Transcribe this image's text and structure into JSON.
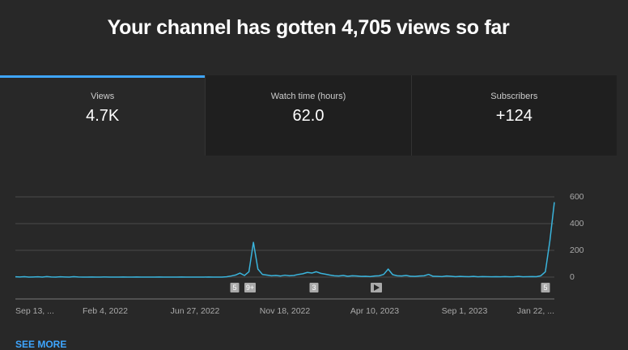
{
  "header": {
    "title": "Your channel has gotten 4,705 views so far"
  },
  "tabs": [
    {
      "label": "Views",
      "value": "4.7K"
    },
    {
      "label": "Watch time (hours)",
      "value": "62.0"
    },
    {
      "label": "Subscribers",
      "value": "+124"
    }
  ],
  "chart_data": {
    "type": "line",
    "categories": [
      "Sep 13, ...",
      null,
      null,
      null,
      null,
      null,
      null,
      null,
      null,
      null,
      null,
      null,
      null,
      null,
      null,
      null,
      null,
      null,
      null,
      null,
      "Feb 4, 2022",
      null,
      null,
      null,
      null,
      null,
      null,
      null,
      null,
      null,
      null,
      null,
      null,
      null,
      null,
      null,
      null,
      null,
      null,
      null,
      "Jun 27, 2022",
      null,
      null,
      null,
      null,
      null,
      null,
      null,
      null,
      null,
      null,
      null,
      null,
      null,
      null,
      null,
      null,
      null,
      null,
      null,
      "Nov 18, 2022",
      null,
      null,
      null,
      null,
      null,
      null,
      null,
      null,
      null,
      null,
      null,
      null,
      null,
      null,
      null,
      null,
      null,
      null,
      null,
      "Apr 10, 2023",
      null,
      null,
      null,
      null,
      null,
      null,
      null,
      null,
      null,
      null,
      null,
      null,
      null,
      null,
      null,
      null,
      null,
      null,
      null,
      "Sep 1, 2023",
      null,
      null,
      null,
      null,
      null,
      null,
      null,
      null,
      null,
      null,
      null,
      null,
      null,
      null,
      null,
      null,
      null,
      null,
      null,
      "Jan 22, ..."
    ],
    "series": [
      {
        "color": "#3ab4dc",
        "values": [
          2,
          1,
          3,
          0,
          1,
          2,
          0,
          4,
          1,
          0,
          2,
          1,
          0,
          3,
          1,
          0,
          0,
          1,
          0,
          0,
          1,
          0,
          0,
          0,
          1,
          0,
          0,
          1,
          0,
          0,
          0,
          0,
          1,
          0,
          0,
          0,
          0,
          1,
          0,
          0,
          0,
          0,
          0,
          1,
          0,
          0,
          0,
          2,
          8,
          15,
          30,
          12,
          40,
          260,
          60,
          20,
          15,
          10,
          12,
          8,
          14,
          10,
          12,
          20,
          25,
          35,
          30,
          40,
          28,
          22,
          15,
          10,
          8,
          12,
          6,
          10,
          8,
          5,
          6,
          4,
          8,
          10,
          20,
          60,
          18,
          10,
          8,
          12,
          6,
          5,
          8,
          10,
          20,
          6,
          5,
          4,
          8,
          6,
          3,
          5,
          4,
          3,
          5,
          2,
          4,
          3,
          2,
          3,
          2,
          4,
          2,
          3,
          5,
          2,
          3,
          4,
          3,
          10,
          40,
          270,
          560
        ]
      }
    ],
    "ylim": [
      0,
      600
    ],
    "yticks": [
      0,
      200,
      400,
      600
    ],
    "grid": true,
    "annotations": [
      "5",
      "9+",
      "3",
      "5"
    ]
  },
  "see_more": "SEE MORE"
}
